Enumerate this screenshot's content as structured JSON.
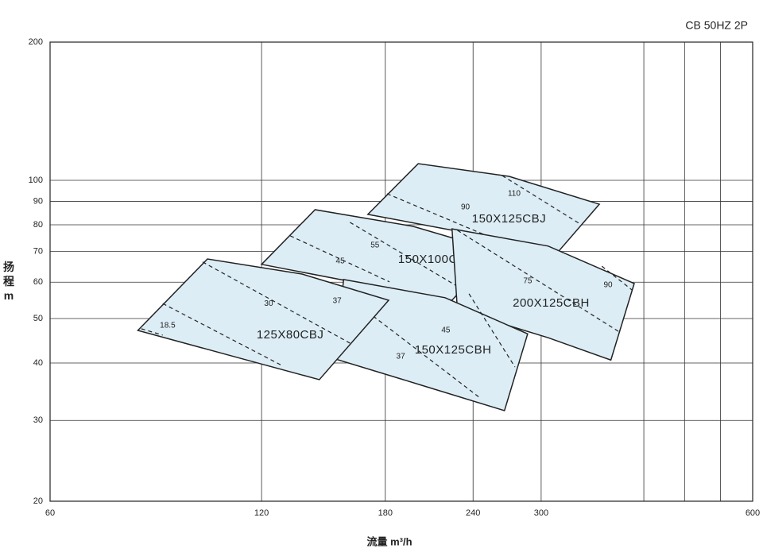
{
  "chart_data": {
    "type": "region",
    "title": "CB 50HZ 2P",
    "xlabel": "流量 m³/h",
    "ylabel": "扬程 m",
    "log_x": true,
    "log_y": true,
    "grid": true,
    "fill": "#dcedf5",
    "stroke": "#222222",
    "xlim": [
      60,
      600
    ],
    "ylim": [
      20,
      200
    ],
    "xticks": [
      60,
      120,
      180,
      240,
      300,
      600
    ],
    "xgrid": [
      420,
      480,
      540
    ],
    "yticks": [
      20,
      30,
      40,
      50,
      60,
      70,
      80,
      90,
      100,
      200
    ],
    "series": [
      {
        "name": "150X125CBJ",
        "x": [
          170,
          200.5,
          270,
          363,
          318,
          231
        ],
        "y": [
          84.3,
          108.7,
          102,
          88.7,
          70.2,
          77.2
        ],
        "label_x": 270,
        "label_y": 82.3,
        "curves": [
          {
            "label": 90,
            "x": [
              181,
              256
            ],
            "y": [
              93.5,
              74.8
            ],
            "label_x": 234,
            "label_y": 87.3
          },
          {
            "label": 110,
            "x": [
              264,
              341
            ],
            "y": [
              102.4,
              80.3
            ],
            "label_x": 274.6,
            "label_y": 93.5
          }
        ]
      },
      {
        "name": "150X100CBJ",
        "x": [
          120,
          143,
          197,
          259,
          224,
          173
        ],
        "y": [
          65.6,
          86.3,
          79.4,
          70.2,
          54.8,
          58.9
        ],
        "label_x": 212,
        "label_y": 67.1,
        "curves": [
          {
            "label": 45,
            "x": [
              131.8,
              182.5
            ],
            "y": [
              75.7,
              60.1
            ],
            "label_x": 155.3,
            "label_y": 66.6
          },
          {
            "label": 55,
            "x": [
              160.3,
              229.5
            ],
            "y": [
              81,
              58.4
            ],
            "label_x": 174,
            "label_y": 72.1
          }
        ]
      },
      {
        "name": "200X125CBH",
        "x": [
          224,
          307,
          407,
          377,
          307,
          228
        ],
        "y": [
          78.4,
          71.9,
          59.6,
          40.6,
          45.4,
          52.2
        ],
        "label_x": 310,
        "label_y": 53.9,
        "curves": [
          {
            "label": 75,
            "x": [
              228,
              388
            ],
            "y": [
              77.8,
              46.7
            ],
            "label_x": 287,
            "label_y": 60.3
          },
          {
            "label": 90,
            "x": [
              366,
              404
            ],
            "y": [
              65,
              57.7
            ],
            "label_x": 373.5,
            "label_y": 59.1
          }
        ]
      },
      {
        "name": "150X125CBH",
        "x": [
          157,
          219,
          287,
          266,
          202.5,
          153
        ],
        "y": [
          60.8,
          55.5,
          46.3,
          31.5,
          35.8,
          40.8
        ],
        "label_x": 224.8,
        "label_y": 42.6,
        "curves": [
          {
            "label": 37,
            "x": [
              173,
              244.8
            ],
            "y": [
              50.6,
              33.7
            ],
            "label_x": 189.3,
            "label_y": 41.3
          },
          {
            "label": 45,
            "x": [
              236.8,
              275.3
            ],
            "y": [
              56.6,
              39.2
            ],
            "label_x": 219.5,
            "label_y": 47.1
          }
        ]
      },
      {
        "name": "125X80CBJ",
        "x": [
          80,
          100.5,
          137,
          182,
          145,
          111
        ],
        "y": [
          47.1,
          67.4,
          62.5,
          54.8,
          36.8,
          41.1
        ],
        "label_x": 131.8,
        "label_y": 46,
        "curves": [
          {
            "label": 18.5,
            "x": [
              80.9,
              86.8
            ],
            "y": [
              47.5,
              46
            ],
            "label_x": 88.2,
            "label_y": 48.3
          },
          {
            "label": 30,
            "x": [
              86.8,
              128.3
            ],
            "y": [
              53.9,
              39.5
            ],
            "label_x": 122.8,
            "label_y": 53.9
          },
          {
            "label": 37,
            "x": [
              98.9,
              160.3
            ],
            "y": [
              66.4,
              44.2
            ],
            "label_x": 153.7,
            "label_y": 54.6
          }
        ]
      }
    ]
  }
}
